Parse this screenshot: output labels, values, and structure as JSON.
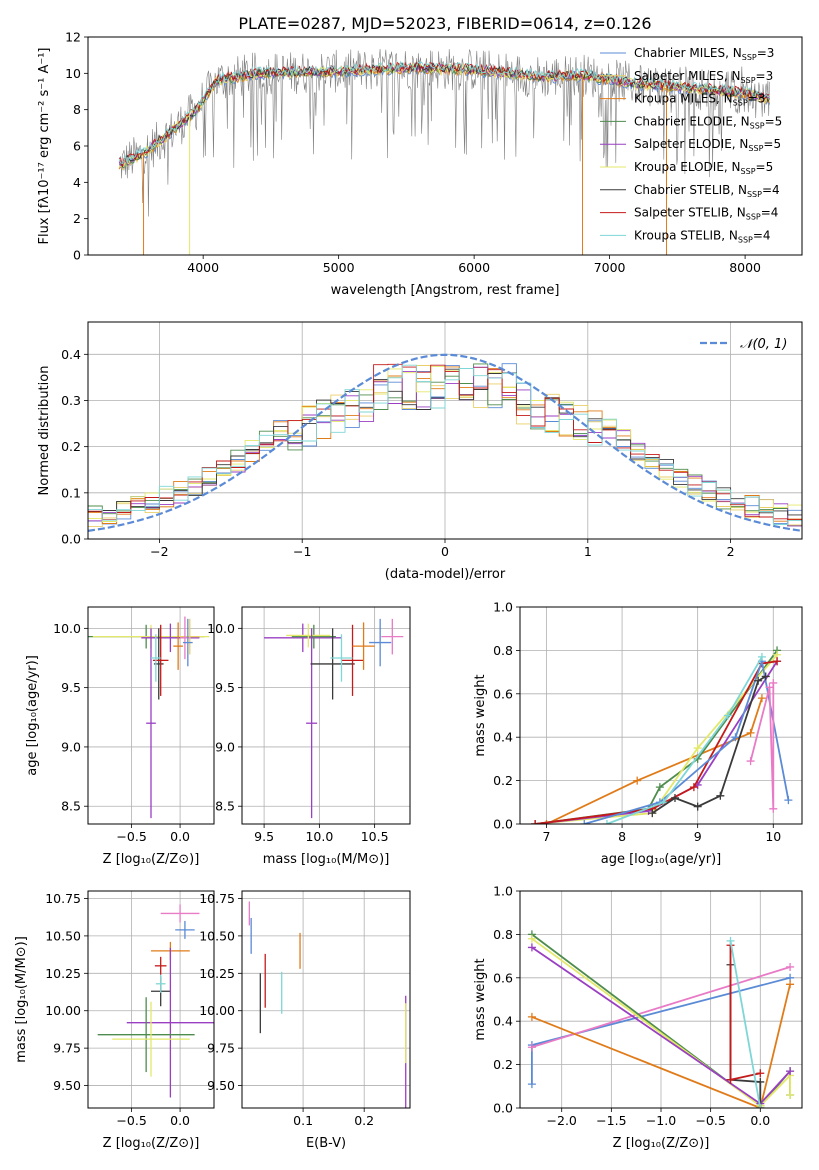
{
  "title": "PLATE=0287, MJD=52023, FIBERID=0614, z=0.126",
  "colors": {
    "grid": "#b0b0b0",
    "spectrum": "#808080",
    "gauss": "#5b8bd6"
  },
  "chart_data": [
    {
      "id": "spectrum",
      "type": "line",
      "xlabel": "wavelength [Angstrom, rest frame]",
      "ylabel": "Flux [fλ10⁻¹⁷ erg cm⁻² s⁻¹ A⁻¹]",
      "xlim": [
        3150,
        8420
      ],
      "ylim": [
        0,
        12
      ],
      "xticks": [
        "4000",
        "5000",
        "6000",
        "7000",
        "8000"
      ],
      "yticks": [
        "0",
        "2",
        "4",
        "6",
        "8",
        "10",
        "12"
      ],
      "grid": false,
      "legend_position": "top-right",
      "data_range": [
        3380,
        8180
      ],
      "continuum_knots": [
        [
          3400,
          5.0
        ],
        [
          3600,
          5.8
        ],
        [
          3800,
          7.0
        ],
        [
          3950,
          8.0
        ],
        [
          4100,
          9.6
        ],
        [
          4400,
          10.0
        ],
        [
          5000,
          10.1
        ],
        [
          5500,
          10.3
        ],
        [
          6000,
          10.2
        ],
        [
          6500,
          9.8
        ],
        [
          6800,
          9.9
        ],
        [
          7200,
          9.4
        ],
        [
          7600,
          9.2
        ],
        [
          8000,
          8.9
        ],
        [
          8180,
          8.6
        ]
      ],
      "model_dropouts": [
        3560,
        3900,
        6800,
        7420
      ],
      "series": [
        {
          "name": "Chabrier MILES, N",
          "sub": "SSP",
          "tail": "=3",
          "color": "#5b8bd6"
        },
        {
          "name": "Salpeter MILES, N",
          "sub": "SSP",
          "tail": "=3",
          "color": "#e8cf6a"
        },
        {
          "name": "Kroupa MILES, N",
          "sub": "SSP",
          "tail": "=3",
          "color": "#e07b1a"
        },
        {
          "name": "Chabrier ELODIE, N",
          "sub": "SSP",
          "tail": "=5",
          "color": "#4e8c4e"
        },
        {
          "name": "Salpeter ELODIE, N",
          "sub": "SSP",
          "tail": "=5",
          "color": "#9a3fc2"
        },
        {
          "name": "Kroupa ELODIE, N",
          "sub": "SSP",
          "tail": "=5",
          "color": "#e3e86a"
        },
        {
          "name": "Chabrier STELIB, N",
          "sub": "SSP",
          "tail": "=4",
          "color": "#3a3a3a"
        },
        {
          "name": "Salpeter STELIB, N",
          "sub": "SSP",
          "tail": "=4",
          "color": "#c41a1a"
        },
        {
          "name": "Kroupa STELIB, N",
          "sub": "SSP",
          "tail": "=4",
          "color": "#7fd6d6"
        }
      ]
    },
    {
      "id": "residuals",
      "type": "histogram",
      "xlabel": "(data-model)/error",
      "ylabel": "Normed distribution",
      "xlim": [
        -2.5,
        2.5
      ],
      "ylim": [
        0,
        0.47
      ],
      "xticks": [
        "−2",
        "−1",
        "0",
        "1",
        "2"
      ],
      "yticks": [
        "0.0",
        "0.1",
        "0.2",
        "0.3",
        "0.4"
      ],
      "grid": true,
      "legend_position": "top-right",
      "gauss_label": "𝒩(0, 1)",
      "bin_width": 0.1
    },
    {
      "id": "age_vs_Z",
      "type": "scatter",
      "xlabel": "Z [log₁₀(Z/Z⊙)]",
      "ylabel": "age  [log₁₀(age/yr)]",
      "xlim": [
        -0.95,
        0.35
      ],
      "ylim": [
        8.35,
        10.18
      ],
      "xticks": [
        "−0.5",
        "0.0"
      ],
      "yticks": [
        "8.5",
        "9.0",
        "9.5",
        "10.0"
      ],
      "grid": true,
      "points": [
        {
          "x": -0.35,
          "xe": 0.6,
          "y": 9.93,
          "ye": 0.1,
          "color": "#4e8c4e"
        },
        {
          "x": -0.3,
          "xe": 0.6,
          "y": 9.93,
          "ye": 0.1,
          "color": "#e3e86a"
        },
        {
          "x": -0.1,
          "xe": 0.3,
          "y": 9.92,
          "ye": 0.12,
          "color": "#9a3fc2"
        },
        {
          "x": 0.1,
          "xe": 0.1,
          "y": 9.93,
          "ye": 0.15,
          "color": "#e8cf6a"
        },
        {
          "x": 0.05,
          "xe": 0.05,
          "y": 9.92,
          "ye": 0.18,
          "color": "#e87ac6"
        },
        {
          "x": 0.08,
          "xe": 0.05,
          "y": 9.88,
          "ye": 0.2,
          "color": "#5b8bd6"
        },
        {
          "x": -0.3,
          "xe": 0.05,
          "y": 9.2,
          "ye": 0.8,
          "color": "#9a3fc2"
        },
        {
          "x": -0.22,
          "xe": 0.05,
          "y": 9.7,
          "ye": 0.3,
          "color": "#3a3a3a"
        },
        {
          "x": -0.2,
          "xe": 0.08,
          "y": 9.73,
          "ye": 0.3,
          "color": "#c41a1a"
        },
        {
          "x": -0.25,
          "xe": 0.05,
          "y": 9.75,
          "ye": 0.2,
          "color": "#7fd6d6"
        },
        {
          "x": -0.02,
          "xe": 0.05,
          "y": 9.85,
          "ye": 0.2,
          "color": "#e07b1a"
        }
      ]
    },
    {
      "id": "age_vs_mass",
      "type": "scatter",
      "xlabel": "mass [log₁₀(M/M⊙)]",
      "ylabel": "",
      "xlim": [
        9.3,
        10.82
      ],
      "ylim": [
        8.35,
        10.18
      ],
      "xticks": [
        "9.5",
        "10.0",
        "10.5"
      ],
      "yticks": [
        "8.5",
        "9.0",
        "9.5",
        "10.0"
      ],
      "grid": true,
      "points": [
        {
          "x": 9.85,
          "xe": 0.35,
          "y": 9.92,
          "ye": 0.12,
          "color": "#9a3fc2"
        },
        {
          "x": 9.95,
          "xe": 0.2,
          "y": 9.93,
          "ye": 0.1,
          "color": "#4e8c4e"
        },
        {
          "x": 9.9,
          "xe": 0.2,
          "y": 9.94,
          "ye": 0.1,
          "color": "#e3e86a"
        },
        {
          "x": 9.93,
          "xe": 0.05,
          "y": 9.2,
          "ye": 0.8,
          "color": "#9a3fc2"
        },
        {
          "x": 10.12,
          "xe": 0.2,
          "y": 9.7,
          "ye": 0.3,
          "color": "#3a3a3a"
        },
        {
          "x": 10.3,
          "xe": 0.1,
          "y": 9.73,
          "ye": 0.3,
          "color": "#c41a1a"
        },
        {
          "x": 10.2,
          "xe": 0.1,
          "y": 9.75,
          "ye": 0.2,
          "color": "#7fd6d6"
        },
        {
          "x": 10.4,
          "xe": 0.1,
          "y": 9.85,
          "ye": 0.2,
          "color": "#e07b1a"
        },
        {
          "x": 10.55,
          "xe": 0.1,
          "y": 9.88,
          "ye": 0.2,
          "color": "#5b8bd6"
        },
        {
          "x": 10.66,
          "xe": 0.1,
          "y": 9.93,
          "ye": 0.15,
          "color": "#e87ac6"
        }
      ]
    },
    {
      "id": "weight_vs_age",
      "type": "line",
      "xlabel": "age  [log₁₀(age/yr)]",
      "ylabel": "mass weight",
      "xlim": [
        6.65,
        10.38
      ],
      "ylim": [
        0,
        1
      ],
      "xticks": [
        "7",
        "8",
        "9",
        "10"
      ],
      "yticks": [
        "0.0",
        "0.2",
        "0.4",
        "0.6",
        "0.8",
        "1.0"
      ],
      "grid": true,
      "lines": [
        {
          "color": "#e07b1a",
          "pts": [
            [
              6.85,
              0.0
            ],
            [
              7.0,
              0.0
            ],
            [
              8.2,
              0.2
            ],
            [
              9.7,
              0.42
            ],
            [
              9.85,
              0.58
            ]
          ]
        },
        {
          "color": "#4e8c4e",
          "pts": [
            [
              6.85,
              0.0
            ],
            [
              8.35,
              0.07
            ],
            [
              8.5,
              0.17
            ],
            [
              9.0,
              0.3
            ],
            [
              10.05,
              0.8
            ]
          ]
        },
        {
          "color": "#e3e86a",
          "pts": [
            [
              6.85,
              0.0
            ],
            [
              8.4,
              0.05
            ],
            [
              9.0,
              0.35
            ],
            [
              10.05,
              0.78
            ]
          ]
        },
        {
          "color": "#9a3fc2",
          "pts": [
            [
              6.85,
              0.0
            ],
            [
              8.35,
              0.06
            ],
            [
              9.0,
              0.18
            ],
            [
              10.05,
              0.75
            ]
          ]
        },
        {
          "color": "#c41a1a",
          "pts": [
            [
              6.85,
              0.0
            ],
            [
              8.4,
              0.07
            ],
            [
              8.95,
              0.17
            ],
            [
              9.85,
              0.74
            ],
            [
              10.05,
              0.75
            ]
          ]
        },
        {
          "color": "#5b8bd6",
          "pts": [
            [
              7.5,
              0.0
            ],
            [
              8.5,
              0.1
            ],
            [
              9.5,
              0.4
            ],
            [
              9.85,
              0.75
            ],
            [
              10.2,
              0.11
            ]
          ]
        },
        {
          "color": "#7fd6d6",
          "pts": [
            [
              7.8,
              0.0
            ],
            [
              8.55,
              0.1
            ],
            [
              9.4,
              0.5
            ],
            [
              9.85,
              0.77
            ]
          ]
        },
        {
          "color": "#3a3a3a",
          "pts": [
            [
              8.4,
              0.05
            ],
            [
              8.7,
              0.12
            ],
            [
              9.0,
              0.08
            ],
            [
              9.3,
              0.13
            ],
            [
              9.8,
              0.66
            ],
            [
              9.9,
              0.68
            ]
          ]
        },
        {
          "color": "#e87ac6",
          "pts": [
            [
              9.7,
              0.29
            ],
            [
              9.95,
              0.63
            ],
            [
              10.0,
              0.07
            ],
            [
              10.0,
              0.65
            ]
          ]
        }
      ]
    },
    {
      "id": "mass_vs_Z",
      "type": "scatter",
      "xlabel": "Z [log₁₀(Z/Z⊙)]",
      "ylabel": "mass [log₁₀(M/M⊙)]",
      "xlim": [
        -0.95,
        0.35
      ],
      "ylim": [
        9.35,
        10.8
      ],
      "xticks": [
        "−0.5",
        "0.0"
      ],
      "yticks": [
        "9.50",
        "9.75",
        "10.00",
        "10.25",
        "10.50",
        "10.75"
      ],
      "grid": true,
      "points": [
        {
          "x": 0.0,
          "xe": 0.2,
          "y": 10.65,
          "ye": 0.06,
          "color": "#e87ac6"
        },
        {
          "x": 0.05,
          "xe": 0.1,
          "y": 10.54,
          "ye": 0.06,
          "color": "#5b8bd6"
        },
        {
          "x": -0.1,
          "xe": 0.2,
          "y": 10.4,
          "ye": 0.06,
          "color": "#e07b1a"
        },
        {
          "x": -0.2,
          "xe": 0.06,
          "y": 10.3,
          "ye": 0.06,
          "color": "#c41a1a"
        },
        {
          "x": -0.2,
          "xe": 0.1,
          "y": 10.13,
          "ye": 0.1,
          "color": "#3a3a3a"
        },
        {
          "x": -0.2,
          "xe": 0.05,
          "y": 10.18,
          "ye": 0.06,
          "color": "#7fd6d6"
        },
        {
          "x": -0.1,
          "xe": 0.45,
          "y": 9.92,
          "ye": 0.5,
          "color": "#9a3fc2"
        },
        {
          "x": -0.35,
          "xe": 0.5,
          "y": 9.84,
          "ye": 0.25,
          "color": "#4e8c4e"
        },
        {
          "x": -0.3,
          "xe": 0.4,
          "y": 9.81,
          "ye": 0.25,
          "color": "#e3e86a"
        }
      ]
    },
    {
      "id": "mass_vs_ebv",
      "type": "scatter",
      "xlabel": "E(B-V)",
      "ylabel": "",
      "xlim": [
        0.0,
        0.275
      ],
      "ylim": [
        9.35,
        10.8
      ],
      "xticks": [
        "0.1",
        "0.2"
      ],
      "yticks": [
        "9.50",
        "9.75",
        "10.00",
        "10.25",
        "10.50",
        "10.75"
      ],
      "grid": true,
      "points": [
        {
          "x": 0.012,
          "y": 10.65,
          "ye": 0.08,
          "color": "#e87ac6"
        },
        {
          "x": 0.015,
          "y": 10.5,
          "ye": 0.12,
          "color": "#5b8bd6"
        },
        {
          "x": 0.03,
          "y": 10.05,
          "ye": 0.2,
          "color": "#3a3a3a"
        },
        {
          "x": 0.038,
          "y": 10.2,
          "ye": 0.18,
          "color": "#c41a1a"
        },
        {
          "x": 0.065,
          "y": 10.12,
          "ye": 0.14,
          "color": "#7fd6d6"
        },
        {
          "x": 0.095,
          "y": 10.4,
          "ye": 0.12,
          "color": "#e07b1a"
        },
        {
          "x": 0.268,
          "y": 9.72,
          "ye": 0.38,
          "color": "#9a3fc2"
        },
        {
          "x": 0.268,
          "y": 9.85,
          "ye": 0.2,
          "color": "#e3e86a"
        }
      ]
    },
    {
      "id": "weight_vs_Z",
      "type": "line",
      "xlabel": "Z [log₁₀(Z/Z⊙)]",
      "ylabel": "mass weight",
      "xlim": [
        -2.42,
        0.42
      ],
      "ylim": [
        0,
        1
      ],
      "xticks": [
        "−2.0",
        "−1.5",
        "−1.0",
        "−0.5",
        "0.0"
      ],
      "yticks": [
        "0.0",
        "0.2",
        "0.4",
        "0.6",
        "0.8",
        "1.0"
      ],
      "grid": true,
      "lines": [
        {
          "color": "#5b8bd6",
          "pts": [
            [
              -2.3,
              0.11
            ],
            [
              -2.3,
              0.29
            ],
            [
              0.3,
              0.6
            ]
          ]
        },
        {
          "color": "#e87ac6",
          "pts": [
            [
              -2.3,
              0.28
            ],
            [
              0.3,
              0.65
            ]
          ]
        },
        {
          "color": "#e07b1a",
          "pts": [
            [
              -2.3,
              0.42
            ],
            [
              0.0,
              0.0
            ],
            [
              0.3,
              0.57
            ]
          ]
        },
        {
          "color": "#4e8c4e",
          "pts": [
            [
              -2.3,
              0.8
            ],
            [
              0.0,
              0.01
            ],
            [
              0.3,
              0.17
            ],
            [
              0.3,
              0.06
            ]
          ]
        },
        {
          "color": "#e3e86a",
          "pts": [
            [
              -2.3,
              0.78
            ],
            [
              0.0,
              0.01
            ],
            [
              0.3,
              0.15
            ],
            [
              0.3,
              0.06
            ]
          ]
        },
        {
          "color": "#9a3fc2",
          "pts": [
            [
              -2.3,
              0.74
            ],
            [
              0.0,
              0.02
            ],
            [
              0.3,
              0.17
            ]
          ]
        },
        {
          "color": "#3a3a3a",
          "pts": [
            [
              -0.3,
              0.66
            ],
            [
              -0.3,
              0.13
            ],
            [
              0.0,
              0.12
            ],
            [
              0.0,
              0.0
            ]
          ]
        },
        {
          "color": "#c41a1a",
          "pts": [
            [
              -0.3,
              0.75
            ],
            [
              -0.3,
              0.13
            ],
            [
              0.0,
              0.16
            ]
          ]
        },
        {
          "color": "#7fd6d6",
          "pts": [
            [
              -0.3,
              0.77
            ],
            [
              0.0,
              0.0
            ]
          ]
        }
      ]
    }
  ]
}
